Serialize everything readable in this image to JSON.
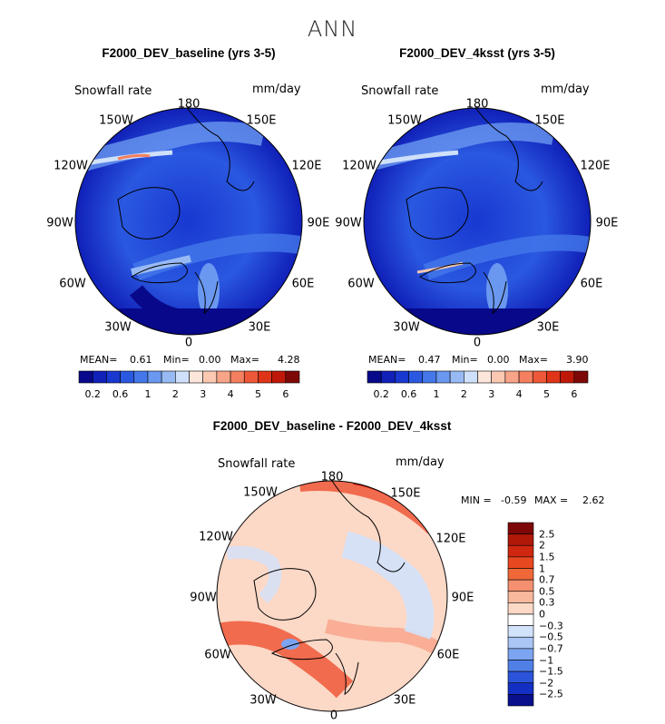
{
  "chart_data": {
    "type": "heatmap",
    "title": "ANN",
    "variable": "Snowfall rate",
    "units": "mm/day",
    "projection": "north polar stereographic",
    "longitude_labels": [
      "180",
      "150E",
      "120E",
      "90E",
      "60E",
      "30E",
      "0",
      "30W",
      "60W",
      "90W",
      "120W",
      "150W"
    ],
    "panels": [
      {
        "title": "F2000_DEV_baseline (yrs 3-5)",
        "stats": {
          "mean_label": "MEAN=",
          "mean": "0.61",
          "min_label": "Min=",
          "min": "0.00",
          "max_label": "Max=",
          "max": "4.28"
        },
        "colorbar_levels": [
          "0.2",
          "0.6",
          "1",
          "2",
          "3",
          "4",
          "5",
          "6"
        ]
      },
      {
        "title": "F2000_DEV_4ksst (yrs 3-5)",
        "stats": {
          "mean_label": "MEAN=",
          "mean": "0.47",
          "min_label": "Min=",
          "min": "0.00",
          "max_label": "Max=",
          "max": "3.90"
        },
        "colorbar_levels": [
          "0.2",
          "0.6",
          "1",
          "2",
          "3",
          "4",
          "5",
          "6"
        ]
      },
      {
        "title": "F2000_DEV_baseline - F2000_DEV_4ksst",
        "stats": {
          "min_label": "MIN =",
          "min": "-0.59",
          "max_label": "MAX =",
          "max": "2.62"
        },
        "colorbar_levels": [
          "2.5",
          "2",
          "1.5",
          "1",
          "0.7",
          "0.5",
          "0.3",
          "0",
          "−0.3",
          "−0.5",
          "−0.7",
          "−1",
          "−1.5",
          "−2",
          "−2.5"
        ]
      }
    ],
    "abs_colors": [
      "#08088a",
      "#1020b8",
      "#1838d0",
      "#2a58e0",
      "#4478ea",
      "#6a98f0",
      "#98baf4",
      "#cfe0fa",
      "#fde6da",
      "#fbc8b2",
      "#f8a488",
      "#f48060",
      "#ee5838",
      "#e03418",
      "#c01808",
      "#7e0808"
    ],
    "diff_colors": [
      "#7e0808",
      "#b01808",
      "#d02810",
      "#e84820",
      "#f06838",
      "#f49070",
      "#f8b89c",
      "#fcd8c6",
      "#ffffff",
      "#d2e2fb",
      "#aac6f6",
      "#7ca4f0",
      "#5080e6",
      "#2c54da",
      "#1430c4",
      "#08108c"
    ]
  }
}
